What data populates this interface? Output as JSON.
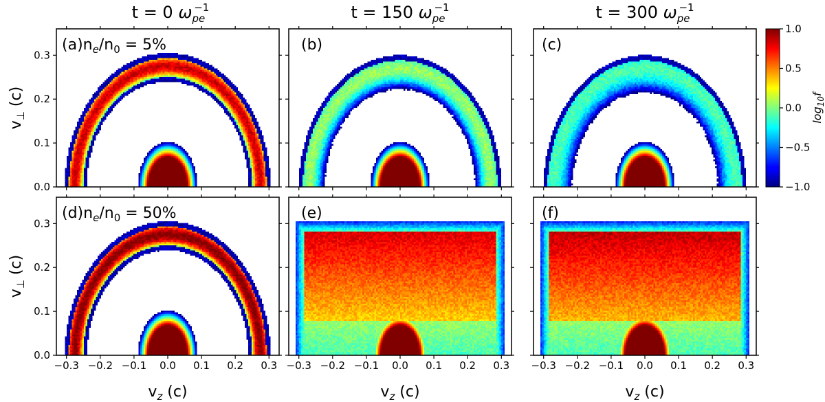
{
  "chart_data": {
    "type": "heatmap",
    "colormap": "jet",
    "columns": [
      {
        "title_prefix": "t = 0 ",
        "title_unit": "ω",
        "title_sub": "pe",
        "title_sup": "−1"
      },
      {
        "title_prefix": "t = 150 ",
        "title_unit": "ω",
        "title_sub": "pe",
        "title_sup": "−1"
      },
      {
        "title_prefix": "t = 300 ",
        "title_unit": "ω",
        "title_sub": "pe",
        "title_sup": "−1"
      }
    ],
    "rows": [
      {
        "density_label_prefix": "n",
        "density_label_sub1": "e",
        "density_label_mid": "/n",
        "density_label_sub2": "0",
        "density_label_value": " = 5%"
      },
      {
        "density_label_prefix": "n",
        "density_label_sub1": "e",
        "density_label_mid": "/n",
        "density_label_sub2": "0",
        "density_label_value": " = 50%"
      }
    ],
    "panels": [
      {
        "id": "a",
        "label": "(a)",
        "ring_radius": 0.275,
        "ring_width": 0.02,
        "ring_peak": 0.85,
        "spread": 0.0,
        "core_radius": 0.055
      },
      {
        "id": "b",
        "label": "(b)",
        "ring_radius": 0.27,
        "ring_width": 0.045,
        "ring_peak": 0.05,
        "spread": 0.3,
        "core_radius": 0.055
      },
      {
        "id": "c",
        "label": "(c)",
        "ring_radius": 0.27,
        "ring_width": 0.06,
        "ring_peak": -0.1,
        "spread": 0.5,
        "core_radius": 0.055
      },
      {
        "id": "d",
        "label": "(d)",
        "ring_radius": 0.275,
        "ring_width": 0.02,
        "ring_peak": 1.0,
        "spread": 0.0,
        "core_radius": 0.055
      },
      {
        "id": "e",
        "label": "(e)",
        "ring_radius": 0.27,
        "ring_width": 0.1,
        "ring_peak": 0.75,
        "spread": 1.0,
        "core_radius": 0.055
      },
      {
        "id": "f",
        "label": "(f)",
        "ring_radius": 0.27,
        "ring_width": 0.1,
        "ring_peak": 0.8,
        "spread": 1.0,
        "core_radius": 0.055
      }
    ],
    "xlabel_main": "v",
    "xlabel_sub": "z",
    "xlabel_unit": " (c)",
    "ylabel_main": "v",
    "ylabel_sub": "⊥",
    "ylabel_unit": " (c)",
    "xlim": [
      -0.33,
      0.33
    ],
    "ylim": [
      0.0,
      0.36
    ],
    "xticks": [
      "−0.3",
      "−0.2",
      "−0.1",
      "0.0",
      "0.1",
      "0.2",
      "0.3"
    ],
    "xtick_values": [
      -0.3,
      -0.2,
      -0.1,
      0.0,
      0.1,
      0.2,
      0.3
    ],
    "yticks": [
      "0.0",
      "0.1",
      "0.2",
      "0.3"
    ],
    "ytick_values": [
      0.0,
      0.1,
      0.2,
      0.3
    ],
    "colorbar": {
      "label_main": "log",
      "label_sub": "10",
      "label_tail": "f",
      "range": [
        -1.0,
        1.0
      ],
      "ticks": [
        "1.0",
        "0.5",
        "0.0",
        "−0.5",
        "−1.0"
      ],
      "tick_values": [
        1.0,
        0.5,
        0.0,
        -0.5,
        -1.0
      ]
    }
  }
}
